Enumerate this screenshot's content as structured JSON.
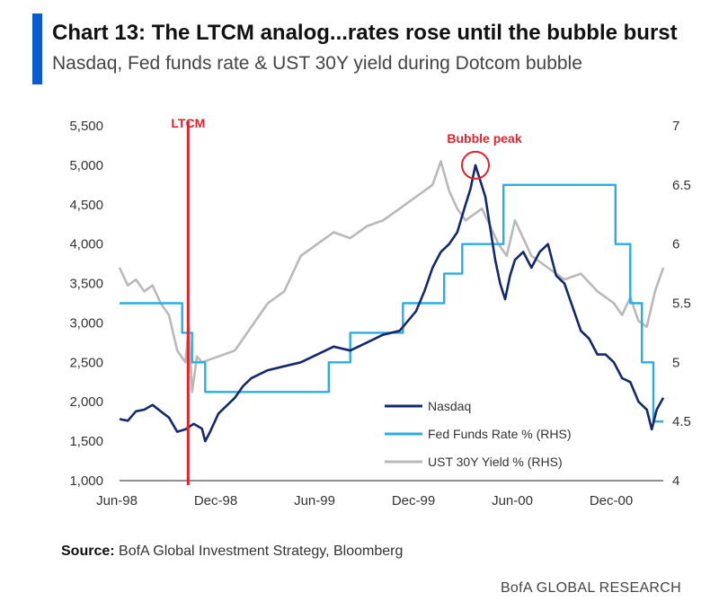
{
  "header": {
    "title": "Chart 13: The LTCM analog...rates rose until the bubble burst",
    "subtitle": "Nasdaq, Fed funds rate & UST 30Y yield during Dotcom bubble"
  },
  "footer": {
    "source_label": "Source:",
    "source_text": "BofA Global Investment Strategy, Bloomberg",
    "brand": "BofA GLOBAL RESEARCH"
  },
  "colors": {
    "nasdaq": "#13296b",
    "fedfunds": "#29aee3",
    "ust30y": "#b9b9b9",
    "annotation": "#e8202a",
    "accent": "#0a5ad1"
  },
  "chart_data": {
    "type": "line",
    "x_axis": {
      "tick_labels": [
        "Jun-98",
        "Dec-98",
        "Jun-99",
        "Dec-99",
        "Jun-00",
        "Dec-00"
      ],
      "tick_times": [
        0,
        6,
        12,
        18,
        24,
        30
      ],
      "range": [
        0,
        33
      ]
    },
    "y_left": {
      "range": [
        1000,
        5500
      ],
      "ticks": [
        1000,
        1500,
        2000,
        2500,
        3000,
        3500,
        4000,
        4500,
        5000,
        5500
      ],
      "tick_labels": [
        "1,000",
        "1,500",
        "2,000",
        "2,500",
        "3,000",
        "3,500",
        "4,000",
        "4,500",
        "5,000",
        "5,500"
      ]
    },
    "y_right": {
      "range": [
        4,
        7
      ],
      "ticks": [
        4,
        4.5,
        5,
        5.5,
        6,
        6.5,
        7
      ],
      "tick_labels": [
        "4",
        "4.5",
        "5",
        "5.5",
        "6",
        "6.5",
        "7"
      ]
    },
    "series": [
      {
        "name": "Nasdaq",
        "axis": "left",
        "points": [
          [
            0,
            1780
          ],
          [
            0.5,
            1760
          ],
          [
            1,
            1880
          ],
          [
            1.5,
            1900
          ],
          [
            2,
            1960
          ],
          [
            2.5,
            1880
          ],
          [
            3,
            1800
          ],
          [
            3.5,
            1620
          ],
          [
            4,
            1650
          ],
          [
            4.5,
            1720
          ],
          [
            5,
            1660
          ],
          [
            5.2,
            1500
          ],
          [
            5.5,
            1620
          ],
          [
            6,
            1850
          ],
          [
            6.5,
            1950
          ],
          [
            7,
            2050
          ],
          [
            7.5,
            2200
          ],
          [
            8,
            2300
          ],
          [
            9,
            2400
          ],
          [
            10,
            2450
          ],
          [
            11,
            2500
          ],
          [
            12,
            2600
          ],
          [
            13,
            2700
          ],
          [
            14,
            2650
          ],
          [
            15,
            2750
          ],
          [
            16,
            2850
          ],
          [
            17,
            2900
          ],
          [
            18,
            3150
          ],
          [
            18.5,
            3400
          ],
          [
            19,
            3700
          ],
          [
            19.5,
            3900
          ],
          [
            20,
            4000
          ],
          [
            20.5,
            4150
          ],
          [
            21,
            4500
          ],
          [
            21.3,
            4700
          ],
          [
            21.6,
            5000
          ],
          [
            21.9,
            4800
          ],
          [
            22.2,
            4600
          ],
          [
            22.5,
            4200
          ],
          [
            22.8,
            3800
          ],
          [
            23.1,
            3500
          ],
          [
            23.4,
            3300
          ],
          [
            23.7,
            3600
          ],
          [
            24,
            3800
          ],
          [
            24.5,
            3900
          ],
          [
            25,
            3700
          ],
          [
            25.5,
            3900
          ],
          [
            26,
            4000
          ],
          [
            26.5,
            3600
          ],
          [
            27,
            3500
          ],
          [
            27.5,
            3200
          ],
          [
            28,
            2900
          ],
          [
            28.5,
            2800
          ],
          [
            29,
            2600
          ],
          [
            29.5,
            2600
          ],
          [
            30,
            2500
          ],
          [
            30.5,
            2300
          ],
          [
            31,
            2250
          ],
          [
            31.5,
            2000
          ],
          [
            32,
            1900
          ],
          [
            32.3,
            1650
          ],
          [
            32.6,
            1900
          ],
          [
            33,
            2050
          ]
        ]
      },
      {
        "name": "Fed Funds Rate % (RHS)",
        "axis": "right",
        "step": true,
        "points": [
          [
            0,
            5.5
          ],
          [
            3.8,
            5.5
          ],
          [
            3.8,
            5.25
          ],
          [
            4.4,
            5.25
          ],
          [
            4.4,
            5
          ],
          [
            5.2,
            5
          ],
          [
            5.2,
            4.75
          ],
          [
            12.7,
            4.75
          ],
          [
            12.7,
            5
          ],
          [
            14,
            5
          ],
          [
            14,
            5.25
          ],
          [
            17.2,
            5.25
          ],
          [
            17.2,
            5.5
          ],
          [
            19.7,
            5.5
          ],
          [
            19.7,
            5.75
          ],
          [
            20.8,
            5.75
          ],
          [
            20.8,
            6
          ],
          [
            23.3,
            6
          ],
          [
            23.3,
            6.5
          ],
          [
            30.1,
            6.5
          ],
          [
            30.1,
            6
          ],
          [
            31,
            6
          ],
          [
            31,
            5.5
          ],
          [
            31.7,
            5.5
          ],
          [
            31.7,
            5
          ],
          [
            32.4,
            5
          ],
          [
            32.4,
            4.5
          ],
          [
            33,
            4.5
          ]
        ]
      },
      {
        "name": "UST 30Y Yield % (RHS)",
        "axis": "right",
        "points": [
          [
            0,
            5.8
          ],
          [
            0.5,
            5.65
          ],
          [
            1,
            5.7
          ],
          [
            1.5,
            5.6
          ],
          [
            2,
            5.65
          ],
          [
            2.5,
            5.5
          ],
          [
            3,
            5.4
          ],
          [
            3.5,
            5.1
          ],
          [
            4,
            5.0
          ],
          [
            4.2,
            5.3
          ],
          [
            4.4,
            4.75
          ],
          [
            4.7,
            5.05
          ],
          [
            5,
            5.0
          ],
          [
            6,
            5.05
          ],
          [
            7,
            5.1
          ],
          [
            8,
            5.3
          ],
          [
            9,
            5.5
          ],
          [
            10,
            5.6
          ],
          [
            11,
            5.9
          ],
          [
            12,
            6.0
          ],
          [
            13,
            6.1
          ],
          [
            14,
            6.05
          ],
          [
            15,
            6.15
          ],
          [
            16,
            6.2
          ],
          [
            17,
            6.3
          ],
          [
            18,
            6.4
          ],
          [
            19,
            6.5
          ],
          [
            19.5,
            6.7
          ],
          [
            20,
            6.45
          ],
          [
            20.5,
            6.3
          ],
          [
            21,
            6.2
          ],
          [
            22,
            6.3
          ],
          [
            23,
            6.0
          ],
          [
            23.5,
            5.9
          ],
          [
            24,
            6.2
          ],
          [
            25,
            5.9
          ],
          [
            26,
            5.8
          ],
          [
            27,
            5.7
          ],
          [
            28,
            5.75
          ],
          [
            29,
            5.6
          ],
          [
            30,
            5.5
          ],
          [
            30.5,
            5.4
          ],
          [
            31,
            5.55
          ],
          [
            31.5,
            5.35
          ],
          [
            32,
            5.3
          ],
          [
            32.5,
            5.6
          ],
          [
            33,
            5.8
          ]
        ]
      }
    ],
    "annotations": [
      {
        "label": "LTCM",
        "type": "vertical-line",
        "x": 4.0
      },
      {
        "label": "Bubble peak",
        "type": "circle",
        "x": 21.6,
        "y": 5000
      }
    ],
    "legend_position": "bottom-right"
  }
}
